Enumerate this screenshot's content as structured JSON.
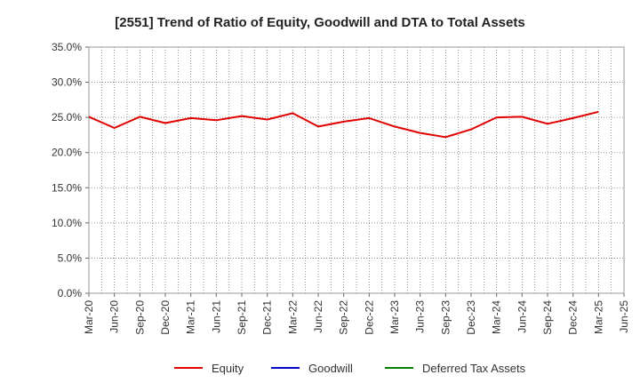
{
  "chart_data": {
    "type": "line",
    "title": "[2551]  Trend of Ratio of Equity, Goodwill and DTA to Total Assets",
    "xlabel": "",
    "ylabel": "",
    "ylim": [
      0,
      35
    ],
    "y_ticks": [
      "0.0%",
      "5.0%",
      "10.0%",
      "15.0%",
      "20.0%",
      "25.0%",
      "30.0%",
      "35.0%"
    ],
    "x_ticks": [
      "Mar-20",
      "Jun-20",
      "Sep-20",
      "Dec-20",
      "Mar-21",
      "Jun-21",
      "Sep-21",
      "Dec-21",
      "Mar-22",
      "Jun-22",
      "Sep-22",
      "Dec-22",
      "Mar-23",
      "Jun-23",
      "Sep-23",
      "Dec-23",
      "Mar-24",
      "Jun-24",
      "Sep-24",
      "Dec-24",
      "Mar-25",
      "Jun-25"
    ],
    "grid": true,
    "legend_position": "bottom",
    "series": [
      {
        "name": "Equity",
        "color": "#e00000",
        "values": [
          25.1,
          23.5,
          25.1,
          24.2,
          24.9,
          24.6,
          25.2,
          24.7,
          25.6,
          23.7,
          24.4,
          24.9,
          23.7,
          22.8,
          22.2,
          23.3,
          25.0,
          25.1,
          24.1,
          24.9,
          25.8,
          null
        ]
      },
      {
        "name": "Goodwill",
        "color": "#0000cc",
        "values": []
      },
      {
        "name": "Deferred Tax Assets",
        "color": "#008000",
        "values": []
      }
    ]
  }
}
